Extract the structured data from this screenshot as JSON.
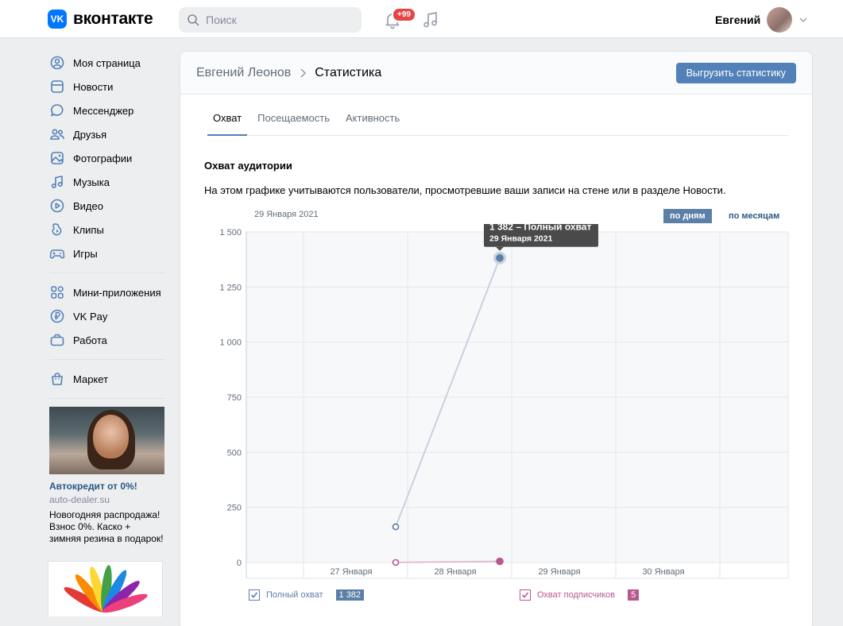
{
  "header": {
    "logo_text": "вконтакте",
    "logo_mark": "VK",
    "search_placeholder": "Поиск",
    "notifications_badge": "+99",
    "user_name": "Евгений"
  },
  "sidebar": {
    "items": [
      {
        "label": "Моя страница",
        "icon": "user-circle-icon"
      },
      {
        "label": "Новости",
        "icon": "newsfeed-icon"
      },
      {
        "label": "Мессенджер",
        "icon": "message-icon"
      },
      {
        "label": "Друзья",
        "icon": "friends-icon"
      },
      {
        "label": "Фотографии",
        "icon": "photo-icon"
      },
      {
        "label": "Музыка",
        "icon": "music-icon"
      },
      {
        "label": "Видео",
        "icon": "video-icon"
      },
      {
        "label": "Клипы",
        "icon": "clips-icon"
      },
      {
        "label": "Игры",
        "icon": "gamepad-icon"
      }
    ],
    "items2": [
      {
        "label": "Мини-приложения",
        "icon": "apps-icon"
      },
      {
        "label": "VK Pay",
        "icon": "ruble-icon"
      },
      {
        "label": "Работа",
        "icon": "briefcase-icon"
      }
    ],
    "items3": [
      {
        "label": "Маркет",
        "icon": "market-bag-icon"
      }
    ],
    "ad": {
      "title": "Автокредит от 0%!",
      "domain": "auto-dealer.su",
      "text": "Новогодняя распродажа! Взнос 0%. Каско + зимняя резина в подарок!"
    }
  },
  "page": {
    "breadcrumb_parent": "Евгений Леонов",
    "breadcrumb_current": "Статистика",
    "export_button": "Выгрузить статистику",
    "tabs": [
      "Охват",
      "Посещаемость",
      "Активность"
    ],
    "active_tab": 0,
    "section_title": "Охват аудитории",
    "section_desc": "На этом графике учитываются пользователи, просмотревшие ваши записи на стене или в разделе Новости.",
    "chart_date": "29 Января 2021",
    "btn_by_day": "по дням",
    "btn_by_month": "по месяцам"
  },
  "colors": {
    "accent": "#5181b8",
    "series_total": "#5b7fa6",
    "series_subscribers": "#b8588e"
  },
  "chart_data": {
    "type": "line",
    "title": "",
    "xlabel": "",
    "ylabel": "",
    "ylim": [
      0,
      1500
    ],
    "yticks": [
      0,
      250,
      500,
      750,
      1000,
      1250,
      1500
    ],
    "ytick_labels": [
      "0",
      "250",
      "500",
      "750",
      "1 000",
      "1 250",
      "1 500"
    ],
    "x_labels": [
      "27 Января",
      "28 Января",
      "29 Января",
      "30 Января"
    ],
    "series": [
      {
        "name": "Полный охват",
        "badge": "1 382",
        "points": [
          {
            "x": "28 Января",
            "y": 162
          },
          {
            "x": "29 Января",
            "y": 1382
          }
        ]
      },
      {
        "name": "Охват подписчиков",
        "badge": "5",
        "points": [
          {
            "x": "28 Января",
            "y": 0
          },
          {
            "x": "29 Января",
            "y": 5
          }
        ]
      }
    ],
    "tooltip": {
      "title": "1 382 – Полный охват",
      "subtitle": "29 Января 2021"
    },
    "grid": true,
    "legend": "bottom"
  }
}
